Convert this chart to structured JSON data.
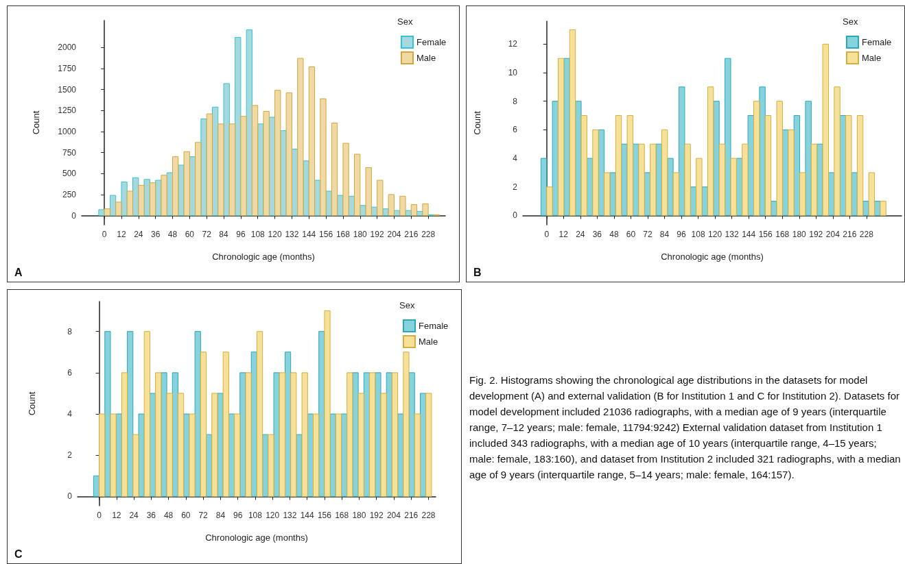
{
  "chart_data": [
    {
      "type": "histogram",
      "xlabel": "Chronologic age (months)",
      "ylabel": "Count",
      "legend_title": "Sex",
      "legend": "top right",
      "annotations": [
        "A"
      ],
      "bins": [
        -4,
        4,
        12,
        20,
        28,
        36,
        44,
        52,
        60,
        68,
        76,
        84,
        92,
        100,
        108,
        116,
        124,
        132,
        140,
        148,
        156,
        164,
        172,
        180,
        188,
        196,
        204,
        212,
        220,
        228,
        236
      ],
      "xlim": [
        -16,
        240
      ],
      "xticks": [
        0,
        12,
        24,
        36,
        48,
        60,
        72,
        84,
        96,
        108,
        120,
        132,
        144,
        156,
        168,
        180,
        192,
        204,
        216,
        228
      ],
      "ylim": [
        -110,
        2320
      ],
      "yticks": [
        0,
        250,
        500,
        750,
        1000,
        1250,
        1500,
        1750,
        2000
      ],
      "series": [
        {
          "name": "Female",
          "color": "#a6d9dd",
          "values": [
            70,
            240,
            400,
            450,
            430,
            420,
            510,
            600,
            700,
            1150,
            1290,
            1570,
            2120,
            2210,
            1090,
            1170,
            1010,
            790,
            650,
            420,
            290,
            240,
            230,
            120,
            100,
            80,
            60,
            60,
            50,
            10
          ]
        },
        {
          "name": "Male",
          "color": "#f0d9a3",
          "values": [
            80,
            160,
            290,
            360,
            390,
            480,
            700,
            760,
            870,
            1210,
            1090,
            1090,
            1180,
            1310,
            1240,
            1490,
            1460,
            1870,
            1770,
            1390,
            1100,
            860,
            730,
            570,
            420,
            250,
            230,
            130,
            140,
            10
          ]
        }
      ]
    },
    {
      "type": "histogram",
      "xlabel": "Chronologic age (months)",
      "ylabel": "Count",
      "legend_title": "Sex",
      "legend": "top right",
      "annotations": [
        "B"
      ],
      "bins": [
        -4.1,
        4.1,
        12.3,
        20.5,
        28.7,
        36.9,
        45.1,
        53.3,
        61.5,
        69.7,
        77.9,
        86.1,
        94.3,
        102.5,
        110.7,
        118.9,
        127.1,
        135.3,
        143.5,
        151.7,
        159.9,
        168.1,
        176.3,
        184.5,
        192.7,
        200.9,
        209.1,
        217.3,
        225.5,
        233.7,
        241.9
      ],
      "xlim": [
        -17,
        253
      ],
      "xticks": [
        0,
        12,
        24,
        36,
        48,
        60,
        72,
        84,
        96,
        108,
        120,
        132,
        144,
        156,
        168,
        180,
        192,
        204,
        216,
        228
      ],
      "ylim": [
        -0.65,
        13.6
      ],
      "yticks": [
        0,
        2,
        4,
        6,
        8,
        10,
        12
      ],
      "series": [
        {
          "name": "Female",
          "color": "#86d3dd",
          "values": [
            4,
            8,
            11,
            8,
            4,
            6,
            3,
            5,
            5,
            3,
            5,
            4,
            9,
            2,
            2,
            8,
            11,
            4,
            7,
            9,
            1,
            6,
            7,
            8,
            5,
            3,
            7,
            3,
            1,
            1
          ]
        },
        {
          "name": "Male",
          "color": "#f7e199",
          "values": [
            2,
            11,
            13,
            7,
            6,
            3,
            7,
            7,
            5,
            5,
            6,
            3,
            5,
            4,
            9,
            5,
            4,
            5,
            8,
            7,
            8,
            6,
            3,
            5,
            12,
            9,
            7,
            7,
            3,
            1
          ]
        }
      ]
    },
    {
      "type": "histogram",
      "xlabel": "Chronologic age (months)",
      "ylabel": "Count",
      "legend_title": "Sex",
      "legend": "top right",
      "annotations": [
        "C"
      ],
      "bins": [
        -3.9,
        3.9,
        11.7,
        19.5,
        27.3,
        35.1,
        42.9,
        50.7,
        58.5,
        66.3,
        74.1,
        81.9,
        89.7,
        97.5,
        105.3,
        113.1,
        120.9,
        128.7,
        136.5,
        144.3,
        152.1,
        159.9,
        167.7,
        175.5,
        183.3,
        191.1,
        198.9,
        206.7,
        214.5,
        222.3,
        230.1
      ],
      "xlim": [
        -15,
        233
      ],
      "xticks": [
        0,
        12,
        24,
        36,
        48,
        60,
        72,
        84,
        96,
        108,
        120,
        132,
        144,
        156,
        168,
        180,
        192,
        204,
        216,
        228
      ],
      "ylim": [
        -0.45,
        9.45
      ],
      "yticks": [
        0,
        2,
        4,
        6,
        8
      ],
      "series": [
        {
          "name": "Female",
          "color": "#86d3dd",
          "values": [
            1,
            8,
            4,
            8,
            4,
            5,
            6,
            6,
            4,
            8,
            3,
            5,
            4,
            6,
            7,
            3,
            6,
            7,
            3,
            4,
            8,
            4,
            4,
            6,
            6,
            6,
            6,
            4,
            6,
            5
          ]
        },
        {
          "name": "Male",
          "color": "#f7e199",
          "values": [
            4,
            4,
            6,
            3,
            8,
            6,
            5,
            5,
            4,
            7,
            5,
            7,
            4,
            6,
            8,
            3,
            6,
            6,
            6,
            4,
            9,
            4,
            6,
            5,
            6,
            5,
            6,
            7,
            4,
            5
          ]
        }
      ]
    },
    {
      "type": "other",
      "annotations": [
        "Fig. 2. Histograms showing the chronological age distributions in the datasets for model development (A) and external validation (B for Institution 1 and C for Institution 2). Datasets for model development included 21036 radiographs, with a median age of 9 years (interquartile range, 7–12 years; male: female, 11794:9242) External validation dataset from Institution 1 included 343 radiographs, with a median age of 10 years (interquartile range, 4–15 years; male: female, 183:160), and dataset from Institution 2 included 321 radiographs, with a median age of 9 years (interquartile range, 5–14 years; male: female, 164:157)."
      ]
    }
  ]
}
